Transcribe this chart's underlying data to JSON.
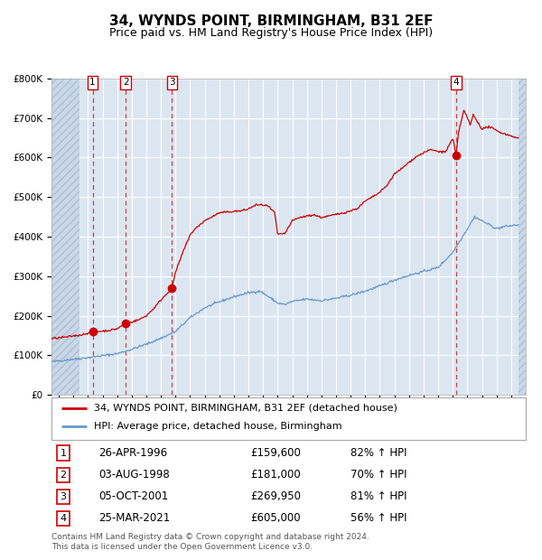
{
  "title": "34, WYNDS POINT, BIRMINGHAM, B31 2EF",
  "subtitle": "Price paid vs. HM Land Registry's House Price Index (HPI)",
  "ylim": [
    0,
    800000
  ],
  "yticks": [
    0,
    100000,
    200000,
    300000,
    400000,
    500000,
    600000,
    700000,
    800000
  ],
  "ytick_labels": [
    "£0",
    "£100K",
    "£200K",
    "£300K",
    "£400K",
    "£500K",
    "£600K",
    "£700K",
    "£800K"
  ],
  "xlim_start": 1993.5,
  "xlim_end": 2026.0,
  "plot_bg_color": "#dce6f1",
  "grid_color": "#ffffff",
  "sale_line_color": "#cc0000",
  "hpi_line_color": "#6699cc",
  "sale_marker_color": "#cc0000",
  "dashed_line_color": "#cc2222",
  "transactions": [
    {
      "label": "1",
      "date_num": 1996.32,
      "price": 159600
    },
    {
      "label": "2",
      "date_num": 1998.59,
      "price": 181000
    },
    {
      "label": "3",
      "date_num": 2001.76,
      "price": 269950
    },
    {
      "label": "4",
      "date_num": 2021.23,
      "price": 605000
    }
  ],
  "legend_entries": [
    {
      "color": "#cc0000",
      "label": "34, WYNDS POINT, BIRMINGHAM, B31 2EF (detached house)"
    },
    {
      "color": "#6699cc",
      "label": "HPI: Average price, detached house, Birmingham"
    }
  ],
  "table_rows": [
    {
      "num": "1",
      "date": "26-APR-1996",
      "price": "£159,600",
      "hpi": "82% ↑ HPI"
    },
    {
      "num": "2",
      "date": "03-AUG-1998",
      "price": "£181,000",
      "hpi": "70% ↑ HPI"
    },
    {
      "num": "3",
      "date": "05-OCT-2001",
      "price": "£269,950",
      "hpi": "81% ↑ HPI"
    },
    {
      "num": "4",
      "date": "25-MAR-2021",
      "price": "£605,000",
      "hpi": "56% ↑ HPI"
    }
  ],
  "footer": "Contains HM Land Registry data © Crown copyright and database right 2024.\nThis data is licensed under the Open Government Licence v3.0.",
  "title_fontsize": 11,
  "subtitle_fontsize": 9,
  "tick_fontsize": 7.5,
  "hatch_region_end": 1995.42
}
